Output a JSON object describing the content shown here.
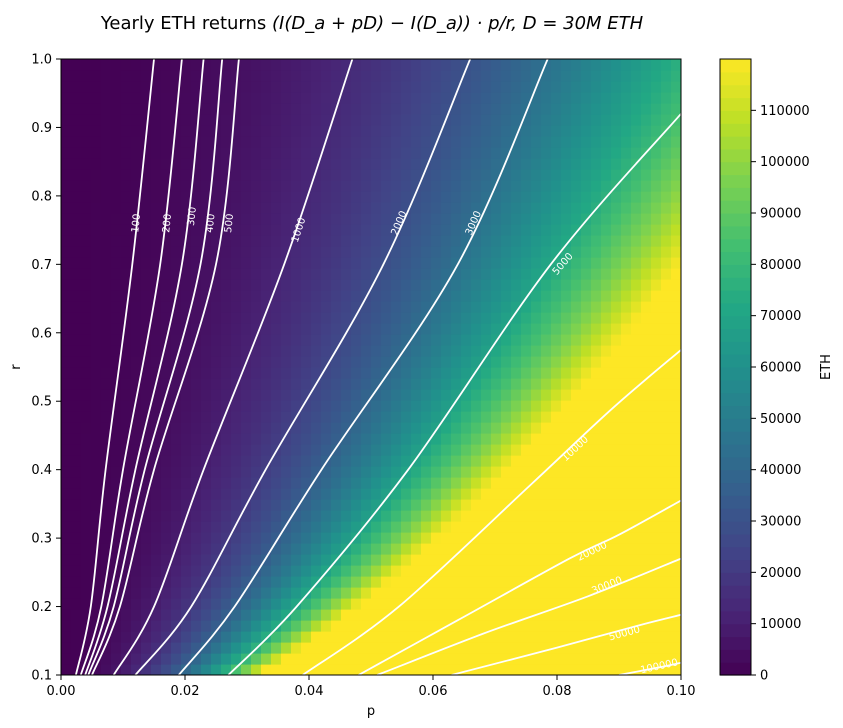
{
  "chart_data": {
    "type": "contour",
    "title": "Yearly ETH returns (I(D_a + pD) − I(D_a)) · p/r, D = 30M ETH",
    "title_parts": {
      "lead": "Yearly ETH returns ",
      "expr": "(I(D_a + pD) − I(D_a)) · p/r, D = 30M ETH"
    },
    "xlabel": "p",
    "ylabel": "r",
    "xlim": [
      0.0,
      0.1
    ],
    "ylim": [
      0.1,
      1.0
    ],
    "x_ticks": [
      0.0,
      0.02,
      0.04,
      0.06,
      0.08,
      0.1
    ],
    "x_tick_labels": [
      "0.00",
      "0.02",
      "0.04",
      "0.06",
      "0.08",
      "0.10"
    ],
    "y_ticks": [
      0.1,
      0.2,
      0.3,
      0.4,
      0.5,
      0.6,
      0.7,
      0.8,
      0.9,
      1.0
    ],
    "y_tick_labels": [
      "0.1",
      "0.2",
      "0.3",
      "0.4",
      "0.5",
      "0.6",
      "0.7",
      "0.8",
      "0.9",
      "1.0"
    ],
    "colorbar": {
      "label": "ETH",
      "colormap": "viridis",
      "range": [
        0,
        120000
      ],
      "ticks": [
        0,
        10000,
        20000,
        30000,
        40000,
        50000,
        60000,
        70000,
        80000,
        90000,
        100000,
        110000
      ],
      "tick_labels": [
        "0",
        "10000",
        "20000",
        "30000",
        "40000",
        "50000",
        "60000",
        "70000",
        "80000",
        "90000",
        "100000",
        "110000"
      ]
    },
    "contours": [
      {
        "level": 100,
        "label": "100",
        "label_pos": [
          0.0122,
          0.76
        ],
        "points": [
          [
            0.0024,
            0.1
          ],
          [
            0.0048,
            0.2
          ],
          [
            0.0072,
            0.4
          ],
          [
            0.0115,
            0.7
          ],
          [
            0.015,
            1.0
          ]
        ]
      },
      {
        "level": 200,
        "label": "200",
        "label_pos": [
          0.0172,
          0.76
        ],
        "points": [
          [
            0.0032,
            0.1
          ],
          [
            0.0065,
            0.2
          ],
          [
            0.01,
            0.4
          ],
          [
            0.016,
            0.7
          ],
          [
            0.0195,
            1.0
          ]
        ]
      },
      {
        "level": 300,
        "label": "300",
        "label_pos": [
          0.0212,
          0.77
        ],
        "points": [
          [
            0.0039,
            0.1
          ],
          [
            0.0075,
            0.2
          ],
          [
            0.012,
            0.4
          ],
          [
            0.0195,
            0.7
          ],
          [
            0.023,
            1.0
          ]
        ]
      },
      {
        "level": 400,
        "label": "400",
        "label_pos": [
          0.0242,
          0.76
        ],
        "points": [
          [
            0.0044,
            0.1
          ],
          [
            0.0085,
            0.2
          ],
          [
            0.0135,
            0.4
          ],
          [
            0.0225,
            0.7
          ],
          [
            0.026,
            1.0
          ]
        ]
      },
      {
        "level": 500,
        "label": "500",
        "label_pos": [
          0.0272,
          0.76
        ],
        "points": [
          [
            0.005,
            0.1
          ],
          [
            0.0095,
            0.2
          ],
          [
            0.015,
            0.4
          ],
          [
            0.025,
            0.7
          ],
          [
            0.0287,
            1.0
          ]
        ]
      },
      {
        "level": 1000,
        "label": "1000",
        "label_pos": [
          0.0384,
          0.75
        ],
        "points": [
          [
            0.0085,
            0.1
          ],
          [
            0.015,
            0.2
          ],
          [
            0.023,
            0.4
          ],
          [
            0.036,
            0.7
          ],
          [
            0.047,
            1.0
          ]
        ]
      },
      {
        "level": 2000,
        "label": "2000",
        "label_pos": [
          0.0546,
          0.76
        ],
        "points": [
          [
            0.012,
            0.1
          ],
          [
            0.021,
            0.2
          ],
          [
            0.033,
            0.4
          ],
          [
            0.052,
            0.7
          ],
          [
            0.066,
            1.0
          ]
        ]
      },
      {
        "level": 3000,
        "label": "3000",
        "label_pos": [
          0.0666,
          0.76
        ],
        "points": [
          [
            0.019,
            0.1
          ],
          [
            0.028,
            0.2
          ],
          [
            0.042,
            0.4
          ],
          [
            0.064,
            0.7
          ],
          [
            0.0785,
            1.0
          ]
        ]
      },
      {
        "level": 5000,
        "label": "5000",
        "label_pos": [
          0.081,
          0.7
        ],
        "points": [
          [
            0.027,
            0.1
          ],
          [
            0.038,
            0.2
          ],
          [
            0.056,
            0.4
          ],
          [
            0.079,
            0.7
          ],
          [
            0.1,
            0.92
          ]
        ]
      },
      {
        "level": 10000,
        "label": "10000",
        "label_pos": [
          0.083,
          0.43
        ],
        "points": [
          [
            0.039,
            0.1
          ],
          [
            0.0545,
            0.2
          ],
          [
            0.076,
            0.38
          ],
          [
            0.089,
            0.49
          ],
          [
            0.1,
            0.575
          ]
        ]
      },
      {
        "level": 20000,
        "label": "20000",
        "label_pos": [
          0.0857,
          0.28
        ],
        "points": [
          [
            0.048,
            0.1
          ],
          [
            0.064,
            0.18
          ],
          [
            0.082,
            0.27
          ],
          [
            0.09,
            0.305
          ],
          [
            0.1,
            0.355
          ]
        ]
      },
      {
        "level": 30000,
        "label": "30000",
        "label_pos": [
          0.0881,
          0.23
        ],
        "points": [
          [
            0.051,
            0.1
          ],
          [
            0.068,
            0.16
          ],
          [
            0.085,
            0.215
          ],
          [
            0.1,
            0.27
          ]
        ]
      },
      {
        "level": 50000,
        "label": "50000",
        "label_pos": [
          0.0909,
          0.16
        ],
        "points": [
          [
            0.063,
            0.1
          ],
          [
            0.08,
            0.14
          ],
          [
            0.093,
            0.172
          ],
          [
            0.1,
            0.188
          ]
        ]
      },
      {
        "level": 100000,
        "label": "100000",
        "label_pos": [
          0.0965,
          0.112
        ],
        "points": [
          [
            0.09,
            0.1
          ],
          [
            0.097,
            0.112
          ],
          [
            0.1,
            0.118
          ]
        ]
      }
    ],
    "grid": false
  }
}
